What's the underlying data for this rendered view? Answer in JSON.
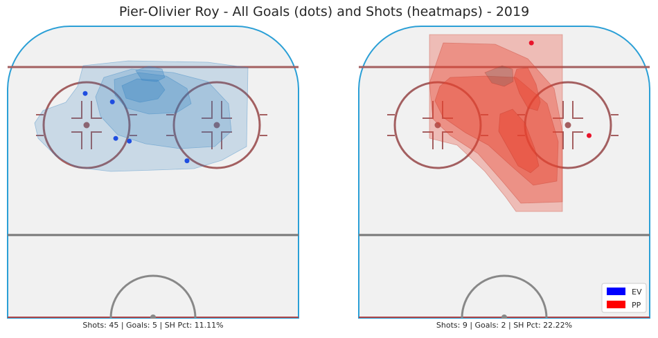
{
  "chart_data": {
    "type": "scatter",
    "title": "Pier-Olivier Roy - All Goals (dots) and Shots (heatmaps) - 2019",
    "legend": {
      "placement": "bottom-right",
      "entries": [
        {
          "label": "EV",
          "color": "#0000ff"
        },
        {
          "label": "PP",
          "color": "#ff0000"
        }
      ]
    },
    "panels": [
      {
        "strength": "EV",
        "caption": "Shots: 45 | Goals: 5 | SH Pct: 11.11%",
        "shots": 45,
        "goals_count": 5,
        "shooting_pct": 11.11,
        "heatmap_color": "#1f77b4",
        "goal_color": "#1f4de0",
        "goals": [
          {
            "x": -20,
            "y": 80
          },
          {
            "x": -12,
            "y": 77
          },
          {
            "x": -11,
            "y": 64
          },
          {
            "x": -7,
            "y": 63
          },
          {
            "x": 10,
            "y": 56
          }
        ]
      },
      {
        "strength": "PP",
        "caption": "Shots: 9 | Goals: 2 | SH Pct: 22.22%",
        "shots": 9,
        "goals_count": 2,
        "shooting_pct": 22.22,
        "heatmap_color": "#e8432f",
        "goal_color": "#e8142b",
        "goals": [
          {
            "x": 8,
            "y": 98
          },
          {
            "x": 25,
            "y": 65
          }
        ]
      }
    ]
  }
}
